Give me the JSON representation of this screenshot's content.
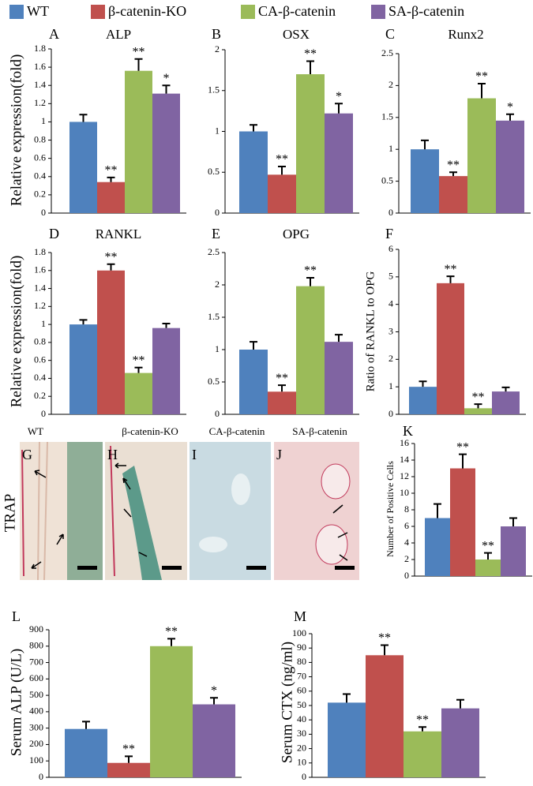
{
  "legend": {
    "series": [
      {
        "name": "WT",
        "color": "#4f81bd"
      },
      {
        "name": "β-catenin-KO",
        "color": "#c0504d"
      },
      {
        "name": "CA-β-catenin",
        "color": "#9bbb59"
      },
      {
        "name": "SA-β-catenin",
        "color": "#8064a2"
      }
    ]
  },
  "chart_data": [
    {
      "type": "bar",
      "panel": "A",
      "title": "ALP",
      "ylabel": "Relative expression(fold)",
      "values": [
        1.0,
        0.34,
        1.56,
        1.31
      ],
      "errors": [
        0.08,
        0.05,
        0.13,
        0.09
      ],
      "annotations": [
        null,
        "**",
        "**",
        "*"
      ],
      "ylim": [
        0,
        1.8
      ],
      "yticks": [
        0,
        0.2,
        0.4,
        0.6,
        0.8,
        1,
        1.2,
        1.4,
        1.6,
        1.8
      ]
    },
    {
      "type": "bar",
      "panel": "B",
      "title": "OSX",
      "values": [
        1.0,
        0.47,
        1.7,
        1.22
      ],
      "errors": [
        0.08,
        0.1,
        0.16,
        0.12
      ],
      "annotations": [
        null,
        "**",
        "**",
        "*"
      ],
      "ylim": [
        0,
        2
      ],
      "yticks": [
        0,
        0.5,
        1,
        1.5,
        2
      ]
    },
    {
      "type": "bar",
      "panel": "C",
      "title": "Runx2",
      "values": [
        1.0,
        0.58,
        1.8,
        1.45
      ],
      "errors": [
        0.14,
        0.06,
        0.23,
        0.1
      ],
      "annotations": [
        null,
        "**",
        "**",
        "*"
      ],
      "ylim": [
        0,
        2.5
      ],
      "yticks": [
        0,
        0.5,
        1,
        1.5,
        2,
        2.5
      ]
    },
    {
      "type": "bar",
      "panel": "D",
      "title": "RANKL",
      "ylabel": "Relative expression(fold)",
      "values": [
        1.0,
        1.6,
        0.46,
        0.96
      ],
      "errors": [
        0.05,
        0.07,
        0.06,
        0.05
      ],
      "annotations": [
        null,
        "**",
        "**",
        null
      ],
      "ylim": [
        0,
        1.8
      ],
      "yticks": [
        0,
        0.2,
        0.4,
        0.6,
        0.8,
        1,
        1.2,
        1.4,
        1.6,
        1.8
      ]
    },
    {
      "type": "bar",
      "panel": "E",
      "title": "OPG",
      "values": [
        1.0,
        0.35,
        1.98,
        1.12
      ],
      "errors": [
        0.12,
        0.1,
        0.13,
        0.11
      ],
      "annotations": [
        null,
        "**",
        "**",
        null
      ],
      "ylim": [
        0,
        2.5
      ],
      "yticks": [
        0,
        0.5,
        1,
        1.5,
        2,
        2.5
      ]
    },
    {
      "type": "bar",
      "panel": "F",
      "ylabel": "Ratio of  RANKL to OPG",
      "values": [
        1.0,
        4.77,
        0.22,
        0.83
      ],
      "errors": [
        0.2,
        0.25,
        0.15,
        0.15
      ],
      "annotations": [
        null,
        "**",
        "**",
        null
      ],
      "ylim": [
        0,
        6
      ],
      "yticks": [
        0,
        1,
        2,
        3,
        4,
        5,
        6
      ]
    },
    {
      "type": "bar",
      "panel": "K",
      "ylabel": "Number of Positive Cells",
      "values": [
        7,
        13,
        2,
        6
      ],
      "errors": [
        1.7,
        1.7,
        0.8,
        1.0
      ],
      "annotations": [
        null,
        "**",
        "**",
        null
      ],
      "ylim": [
        0,
        16
      ],
      "yticks": [
        0,
        2,
        4,
        6,
        8,
        10,
        12,
        14,
        16
      ]
    },
    {
      "type": "bar",
      "panel": "L",
      "ylabel": "Serum ALP (U/L)",
      "values": [
        295,
        88,
        800,
        445
      ],
      "errors": [
        45,
        40,
        45,
        40
      ],
      "annotations": [
        null,
        "**",
        "**",
        "*"
      ],
      "ylim": [
        0,
        900
      ],
      "yticks": [
        0,
        100,
        200,
        300,
        400,
        500,
        600,
        700,
        800,
        900
      ]
    },
    {
      "type": "bar",
      "panel": "M",
      "ylabel": "Serum CTX (ng/ml)",
      "values": [
        52,
        85,
        32,
        48
      ],
      "errors": [
        6,
        7,
        3,
        6
      ],
      "annotations": [
        null,
        "**",
        "**",
        null
      ],
      "ylim": [
        0,
        100
      ],
      "yticks": [
        0,
        10,
        20,
        30,
        40,
        50,
        60,
        70,
        80,
        90,
        100
      ]
    }
  ],
  "images": {
    "row_label": "TRAP",
    "captions": [
      "WT",
      "β-catenin-KO",
      "CA-β-catenin",
      "SA-β-catenin"
    ],
    "panels": [
      "G",
      "H",
      "I",
      "J"
    ]
  }
}
